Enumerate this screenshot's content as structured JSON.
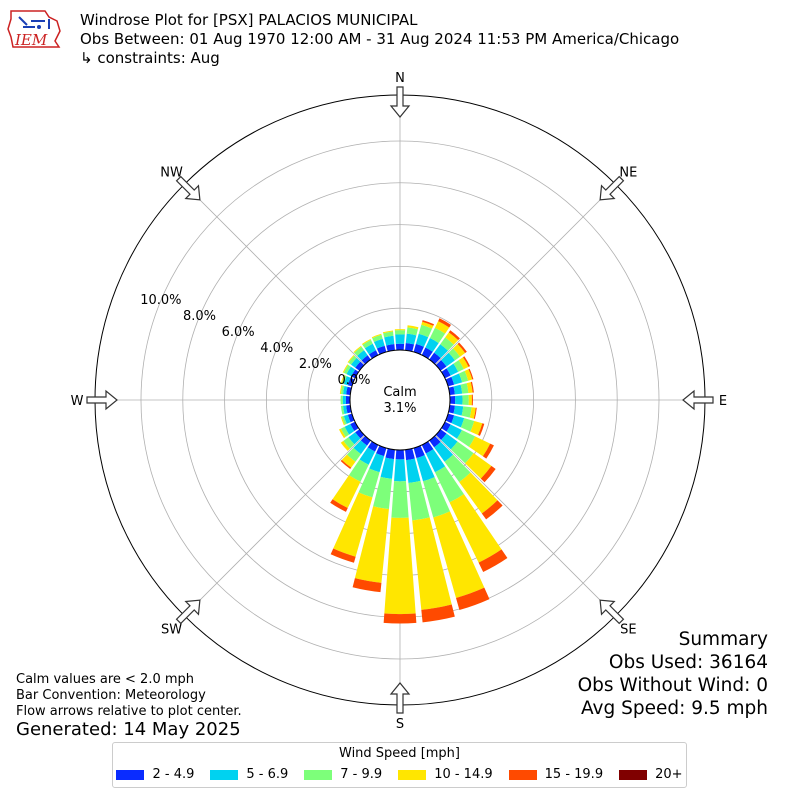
{
  "header": {
    "title": "Windrose Plot for [PSX] PALACIOS MUNICIPAL",
    "period": "Obs Between: 01 Aug 1970 12:00 AM - 31 Aug 2024 11:53 PM America/Chicago",
    "constraints": "↳ constraints: Aug"
  },
  "logo": {
    "text": "IEM",
    "color": "#cc2222",
    "accent": "#1a3fb5"
  },
  "notes": {
    "calm_note": "Calm values are < 2.0 mph",
    "bar_convention": "Bar Convention: Meteorology",
    "flow_arrows": "Flow arrows relative to plot center.",
    "generated": "Generated: 14 May 2025"
  },
  "summary": {
    "title": "Summary",
    "obs_used": "Obs Used: 36164",
    "obs_without_wind": "Obs Without Wind: 0",
    "avg_speed": "Avg Speed: 9.5 mph"
  },
  "legend": {
    "title": "Wind Speed [mph]",
    "items": [
      {
        "label": "2 - 4.9",
        "color": "#0a2cff"
      },
      {
        "label": "5 - 6.9",
        "color": "#00d2f0"
      },
      {
        "label": "7 - 9.9",
        "color": "#7dff7a"
      },
      {
        "label": "10 - 14.9",
        "color": "#ffe600"
      },
      {
        "label": "15 - 19.9",
        "color": "#ff4a00"
      },
      {
        "label": "20+",
        "color": "#800000"
      }
    ]
  },
  "chart_data": {
    "type": "windrose",
    "calm": {
      "label": "Calm",
      "value": "3.1%"
    },
    "radial_ticks": [
      "0.0%",
      "2.0%",
      "4.0%",
      "6.0%",
      "8.0%",
      "10.0%"
    ],
    "radial_tick_values": [
      0,
      2,
      4,
      6,
      8,
      10
    ],
    "rmax": 12.2,
    "directions": [
      "N",
      "NE",
      "E",
      "SE",
      "S",
      "SW",
      "W",
      "NW"
    ],
    "speed_bins": [
      "2 - 4.9",
      "5 - 6.9",
      "7 - 9.9",
      "10 - 14.9",
      "15 - 19.9",
      "20+"
    ],
    "bin_colors": [
      "#0a2cff",
      "#00d2f0",
      "#7dff7a",
      "#ffe600",
      "#ff4a00",
      "#800000"
    ],
    "sector_directions_deg": [
      0,
      10,
      20,
      30,
      40,
      50,
      60,
      70,
      80,
      90,
      100,
      110,
      120,
      130,
      140,
      150,
      160,
      170,
      180,
      190,
      200,
      210,
      220,
      230,
      240,
      250,
      260,
      270,
      280,
      290,
      300,
      310,
      320,
      330,
      340,
      350
    ],
    "sectors": [
      [
        0.3,
        0.45,
        0.2,
        0.05,
        0.0,
        0.0
      ],
      [
        0.35,
        0.45,
        0.3,
        0.1,
        0.0,
        0.0
      ],
      [
        0.4,
        0.5,
        0.45,
        0.15,
        0.08,
        0.0
      ],
      [
        0.4,
        0.5,
        0.55,
        0.35,
        0.15,
        0.0
      ],
      [
        0.4,
        0.5,
        0.4,
        0.3,
        0.12,
        0.0
      ],
      [
        0.35,
        0.5,
        0.3,
        0.3,
        0.1,
        0.0
      ],
      [
        0.3,
        0.4,
        0.3,
        0.25,
        0.08,
        0.0
      ],
      [
        0.3,
        0.4,
        0.3,
        0.2,
        0.06,
        0.0
      ],
      [
        0.25,
        0.35,
        0.3,
        0.2,
        0.06,
        0.0
      ],
      [
        0.25,
        0.35,
        0.3,
        0.15,
        0.05,
        0.0
      ],
      [
        0.25,
        0.4,
        0.4,
        0.2,
        0.05,
        0.0
      ],
      [
        0.3,
        0.5,
        0.5,
        0.4,
        0.1,
        0.0
      ],
      [
        0.3,
        0.6,
        0.7,
        0.8,
        0.2,
        0.0
      ],
      [
        0.35,
        0.65,
        0.95,
        1.05,
        0.25,
        0.0
      ],
      [
        0.4,
        0.85,
        1.2,
        1.85,
        0.35,
        0.0
      ],
      [
        0.45,
        1.0,
        1.6,
        3.2,
        0.5,
        0.0
      ],
      [
        0.5,
        1.15,
        1.8,
        4.0,
        0.6,
        0.0
      ],
      [
        0.5,
        1.1,
        1.8,
        4.3,
        0.6,
        0.0
      ],
      [
        0.45,
        1.05,
        1.75,
        4.6,
        0.45,
        0.0
      ],
      [
        0.45,
        0.95,
        1.45,
        3.55,
        0.45,
        0.0
      ],
      [
        0.4,
        0.8,
        1.25,
        2.95,
        0.3,
        0.0
      ],
      [
        0.35,
        0.7,
        0.9,
        1.4,
        0.2,
        0.0
      ],
      [
        0.3,
        0.5,
        0.45,
        0.35,
        0.08,
        0.0
      ],
      [
        0.25,
        0.4,
        0.3,
        0.15,
        0.0,
        0.0
      ],
      [
        0.25,
        0.3,
        0.2,
        0.1,
        0.0,
        0.0
      ],
      [
        0.2,
        0.2,
        0.1,
        0.05,
        0.0,
        0.0
      ],
      [
        0.2,
        0.15,
        0.1,
        0.0,
        0.0,
        0.0
      ],
      [
        0.2,
        0.15,
        0.1,
        0.0,
        0.0,
        0.0
      ],
      [
        0.2,
        0.15,
        0.1,
        0.05,
        0.0,
        0.0
      ],
      [
        0.2,
        0.2,
        0.1,
        0.05,
        0.0,
        0.0
      ],
      [
        0.2,
        0.25,
        0.15,
        0.05,
        0.0,
        0.0
      ],
      [
        0.25,
        0.25,
        0.15,
        0.05,
        0.0,
        0.0
      ],
      [
        0.25,
        0.3,
        0.2,
        0.05,
        0.0,
        0.0
      ],
      [
        0.25,
        0.35,
        0.2,
        0.05,
        0.0,
        0.0
      ],
      [
        0.3,
        0.35,
        0.2,
        0.05,
        0.0,
        0.0
      ],
      [
        0.3,
        0.4,
        0.2,
        0.05,
        0.0,
        0.0
      ]
    ]
  }
}
